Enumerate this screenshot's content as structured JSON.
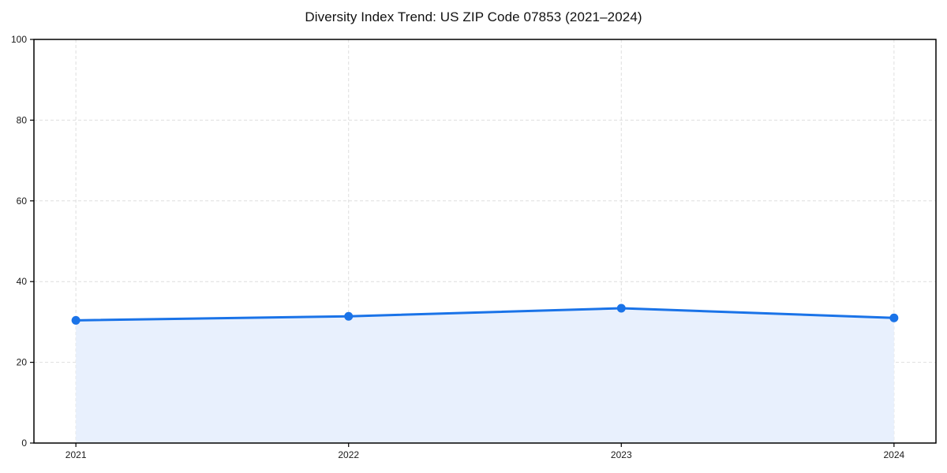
{
  "chart_data": {
    "type": "area",
    "title": "Diversity Index Trend: US ZIP Code 07853 (2021–2024)",
    "categories": [
      "2021",
      "2022",
      "2023",
      "2024"
    ],
    "values": [
      30.4,
      31.4,
      33.4,
      31.0
    ],
    "series_name": "Diversity Index",
    "xlabel": "",
    "ylabel": "",
    "ylim": [
      0,
      100
    ],
    "yticks": [
      0,
      20,
      40,
      60,
      80,
      100
    ],
    "grid": true,
    "grid_style": "dashed",
    "legend_position": "none",
    "line_color": "#1a73e8",
    "marker_color": "#1a73e8",
    "fill_color": "#e8f0fd",
    "grid_color": "#dedede",
    "spine_color": "#000000",
    "background_color": "#ffffff"
  }
}
